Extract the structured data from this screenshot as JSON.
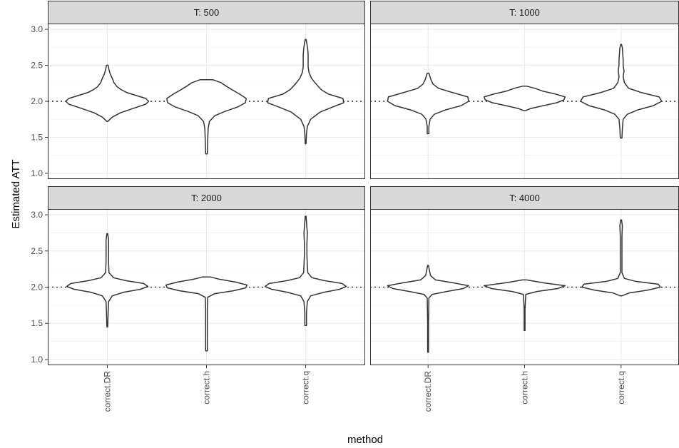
{
  "chart_data": {
    "type": "violin",
    "xlabel": "method",
    "ylabel": "Estimated ATT",
    "ylim": [
      0.92,
      3.08
    ],
    "yticks": [
      1.0,
      1.5,
      2.0,
      2.5,
      3.0
    ],
    "ytick_labels": [
      "1.0",
      "1.5",
      "2.0",
      "2.5",
      "3.0"
    ],
    "categories": [
      "correct.DR",
      "correct.h",
      "correct.q"
    ],
    "reference_line": 2.0,
    "grid": true,
    "facets": [
      {
        "strip": "T: 500",
        "violins": [
          {
            "method": "correct.DR",
            "min": 1.72,
            "max": 2.5,
            "profile": [
              [
                1.72,
                0.01
              ],
              [
                1.78,
                0.12
              ],
              [
                1.84,
                0.32
              ],
              [
                1.9,
                0.62
              ],
              [
                1.96,
                0.93
              ],
              [
                2.0,
                1.0
              ],
              [
                2.04,
                0.93
              ],
              [
                2.08,
                0.7
              ],
              [
                2.12,
                0.48
              ],
              [
                2.16,
                0.34
              ],
              [
                2.2,
                0.24
              ],
              [
                2.26,
                0.16
              ],
              [
                2.32,
                0.12
              ],
              [
                2.38,
                0.07
              ],
              [
                2.44,
                0.04
              ],
              [
                2.5,
                0.02
              ]
            ]
          },
          {
            "method": "correct.h",
            "min": 1.27,
            "max": 2.3,
            "profile": [
              [
                1.27,
                0.02
              ],
              [
                1.45,
                0.03
              ],
              [
                1.62,
                0.04
              ],
              [
                1.72,
                0.07
              ],
              [
                1.8,
                0.2
              ],
              [
                1.86,
                0.45
              ],
              [
                1.92,
                0.75
              ],
              [
                1.98,
                0.94
              ],
              [
                2.04,
                0.96
              ],
              [
                2.1,
                0.8
              ],
              [
                2.16,
                0.62
              ],
              [
                2.22,
                0.45
              ],
              [
                2.26,
                0.35
              ],
              [
                2.3,
                0.15
              ]
            ]
          },
          {
            "method": "correct.q",
            "min": 1.41,
            "max": 2.86,
            "profile": [
              [
                1.41,
                0.01
              ],
              [
                1.55,
                0.02
              ],
              [
                1.65,
                0.04
              ],
              [
                1.75,
                0.12
              ],
              [
                1.85,
                0.35
              ],
              [
                1.92,
                0.65
              ],
              [
                1.98,
                0.92
              ],
              [
                2.04,
                0.9
              ],
              [
                2.1,
                0.55
              ],
              [
                2.16,
                0.38
              ],
              [
                2.24,
                0.25
              ],
              [
                2.32,
                0.14
              ],
              [
                2.4,
                0.08
              ],
              [
                2.48,
                0.06
              ],
              [
                2.56,
                0.06
              ],
              [
                2.64,
                0.06
              ],
              [
                2.72,
                0.05
              ],
              [
                2.8,
                0.03
              ],
              [
                2.86,
                0.01
              ]
            ]
          }
        ]
      },
      {
        "strip": "T: 1000",
        "violins": [
          {
            "method": "correct.DR",
            "min": 1.55,
            "max": 2.39,
            "profile": [
              [
                1.55,
                0.02
              ],
              [
                1.65,
                0.02
              ],
              [
                1.75,
                0.05
              ],
              [
                1.82,
                0.15
              ],
              [
                1.88,
                0.42
              ],
              [
                1.94,
                0.8
              ],
              [
                2.0,
                0.98
              ],
              [
                2.06,
                0.96
              ],
              [
                2.12,
                0.6
              ],
              [
                2.18,
                0.25
              ],
              [
                2.24,
                0.12
              ],
              [
                2.3,
                0.07
              ],
              [
                2.39,
                0.02
              ]
            ]
          },
          {
            "method": "correct.h",
            "min": 1.87,
            "max": 2.21,
            "profile": [
              [
                1.87,
                0.02
              ],
              [
                1.9,
                0.15
              ],
              [
                1.94,
                0.45
              ],
              [
                1.98,
                0.78
              ],
              [
                2.02,
                0.95
              ],
              [
                2.06,
                0.98
              ],
              [
                2.1,
                0.75
              ],
              [
                2.14,
                0.45
              ],
              [
                2.18,
                0.25
              ],
              [
                2.21,
                0.05
              ]
            ]
          },
          {
            "method": "correct.q",
            "min": 1.49,
            "max": 2.79,
            "profile": [
              [
                1.49,
                0.02
              ],
              [
                1.62,
                0.03
              ],
              [
                1.75,
                0.05
              ],
              [
                1.82,
                0.15
              ],
              [
                1.88,
                0.4
              ],
              [
                1.94,
                0.78
              ],
              [
                2.0,
                0.98
              ],
              [
                2.06,
                0.92
              ],
              [
                2.12,
                0.5
              ],
              [
                2.18,
                0.18
              ],
              [
                2.26,
                0.08
              ],
              [
                2.34,
                0.05
              ],
              [
                2.42,
                0.07
              ],
              [
                2.5,
                0.05
              ],
              [
                2.58,
                0.05
              ],
              [
                2.66,
                0.04
              ],
              [
                2.74,
                0.03
              ],
              [
                2.79,
                0.01
              ]
            ]
          }
        ]
      },
      {
        "strip": "T: 2000",
        "violins": [
          {
            "method": "correct.DR",
            "min": 1.45,
            "max": 2.74,
            "profile": [
              [
                1.45,
                0.01
              ],
              [
                1.65,
                0.02
              ],
              [
                1.8,
                0.03
              ],
              [
                1.88,
                0.12
              ],
              [
                1.93,
                0.4
              ],
              [
                1.97,
                0.8
              ],
              [
                2.01,
                0.98
              ],
              [
                2.05,
                0.88
              ],
              [
                2.09,
                0.45
              ],
              [
                2.13,
                0.15
              ],
              [
                2.2,
                0.04
              ],
              [
                2.35,
                0.03
              ],
              [
                2.45,
                0.03
              ],
              [
                2.55,
                0.03
              ],
              [
                2.65,
                0.03
              ],
              [
                2.74,
                0.01
              ]
            ]
          },
          {
            "method": "correct.h",
            "min": 1.12,
            "max": 2.14,
            "profile": [
              [
                1.12,
                0.02
              ],
              [
                1.4,
                0.02
              ],
              [
                1.7,
                0.02
              ],
              [
                1.86,
                0.03
              ],
              [
                1.91,
                0.2
              ],
              [
                1.95,
                0.65
              ],
              [
                1.99,
                0.95
              ],
              [
                2.03,
                0.98
              ],
              [
                2.07,
                0.7
              ],
              [
                2.11,
                0.3
              ],
              [
                2.14,
                0.1
              ]
            ]
          },
          {
            "method": "correct.q",
            "min": 1.47,
            "max": 2.98,
            "profile": [
              [
                1.47,
                0.02
              ],
              [
                1.65,
                0.02
              ],
              [
                1.8,
                0.04
              ],
              [
                1.88,
                0.12
              ],
              [
                1.93,
                0.45
              ],
              [
                1.97,
                0.82
              ],
              [
                2.01,
                0.98
              ],
              [
                2.05,
                0.88
              ],
              [
                2.09,
                0.45
              ],
              [
                2.13,
                0.15
              ],
              [
                2.2,
                0.05
              ],
              [
                2.3,
                0.04
              ],
              [
                2.45,
                0.03
              ],
              [
                2.6,
                0.03
              ],
              [
                2.75,
                0.04
              ],
              [
                2.9,
                0.02
              ],
              [
                2.98,
                0.01
              ]
            ]
          }
        ]
      },
      {
        "strip": "T: 4000",
        "violins": [
          {
            "method": "correct.DR",
            "min": 1.1,
            "max": 2.3,
            "profile": [
              [
                1.1,
                0.01
              ],
              [
                1.5,
                0.01
              ],
              [
                1.85,
                0.02
              ],
              [
                1.9,
                0.1
              ],
              [
                1.94,
                0.45
              ],
              [
                1.98,
                0.85
              ],
              [
                2.02,
                0.98
              ],
              [
                2.06,
                0.6
              ],
              [
                2.1,
                0.18
              ],
              [
                2.16,
                0.06
              ],
              [
                2.24,
                0.03
              ],
              [
                2.3,
                0.01
              ]
            ]
          },
          {
            "method": "correct.h",
            "min": 1.4,
            "max": 2.1,
            "profile": [
              [
                1.4,
                0.01
              ],
              [
                1.7,
                0.01
              ],
              [
                1.9,
                0.03
              ],
              [
                1.94,
                0.3
              ],
              [
                1.98,
                0.8
              ],
              [
                2.02,
                0.98
              ],
              [
                2.06,
                0.45
              ],
              [
                2.1,
                0.05
              ]
            ]
          },
          {
            "method": "correct.q",
            "min": 1.88,
            "max": 2.93,
            "profile": [
              [
                1.88,
                0.02
              ],
              [
                1.92,
                0.2
              ],
              [
                1.96,
                0.65
              ],
              [
                2.0,
                0.95
              ],
              [
                2.04,
                0.9
              ],
              [
                2.08,
                0.35
              ],
              [
                2.12,
                0.08
              ],
              [
                2.2,
                0.02
              ],
              [
                2.5,
                0.02
              ],
              [
                2.7,
                0.02
              ],
              [
                2.85,
                0.03
              ],
              [
                2.93,
                0.01
              ]
            ]
          }
        ]
      }
    ]
  }
}
